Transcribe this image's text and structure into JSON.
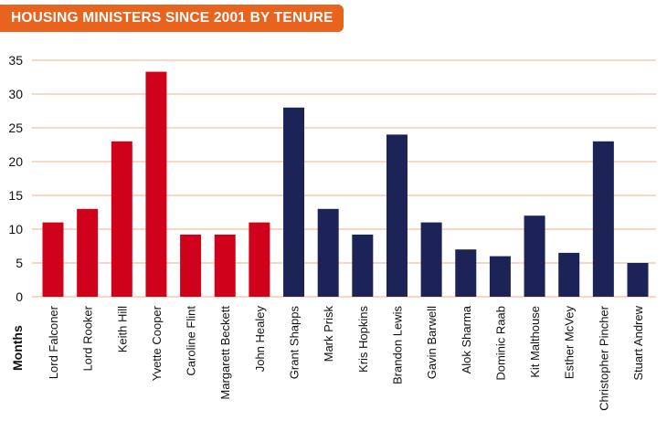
{
  "header": {
    "title": "HOUSING MINISTERS SINCE 2001 BY TENURE"
  },
  "colors": {
    "title_bg": "#e8641e",
    "grid": "#f0b08a",
    "labour": "#d0021b",
    "conservative": "#1c2357"
  },
  "chart_data": {
    "type": "bar",
    "title": "HOUSING MINISTERS SINCE 2001 BY TENURE",
    "ylabel": "Months",
    "xlabel": "",
    "ylim": [
      0,
      35
    ],
    "yticks": [
      0,
      5,
      10,
      15,
      20,
      25,
      30,
      35
    ],
    "grid": true,
    "categories": [
      "Lord Falconer",
      "Lord Rooker",
      "Keith Hill",
      "Yvette Cooper",
      "Caroline Flint",
      "Margarett Beckett",
      "John Healey",
      "Grant Shapps",
      "Mark Prisk",
      "Kris Hopkins",
      "Brandon Lewis",
      "Gavin Barwell",
      "Alok Sharma",
      "Dominic Raab",
      "Kit Malthouse",
      "Esther McVey",
      "Christopher Pincher",
      "Stuart Andrew"
    ],
    "values": [
      11,
      13,
      23,
      33.3,
      9.2,
      9.2,
      11,
      28,
      13,
      9.2,
      24,
      11,
      7,
      6,
      12,
      6.5,
      23,
      5
    ],
    "bar_colors": [
      "#d0021b",
      "#d0021b",
      "#d0021b",
      "#d0021b",
      "#d0021b",
      "#d0021b",
      "#d0021b",
      "#1c2357",
      "#1c2357",
      "#1c2357",
      "#1c2357",
      "#1c2357",
      "#1c2357",
      "#1c2357",
      "#1c2357",
      "#1c2357",
      "#1c2357",
      "#1c2357"
    ]
  }
}
